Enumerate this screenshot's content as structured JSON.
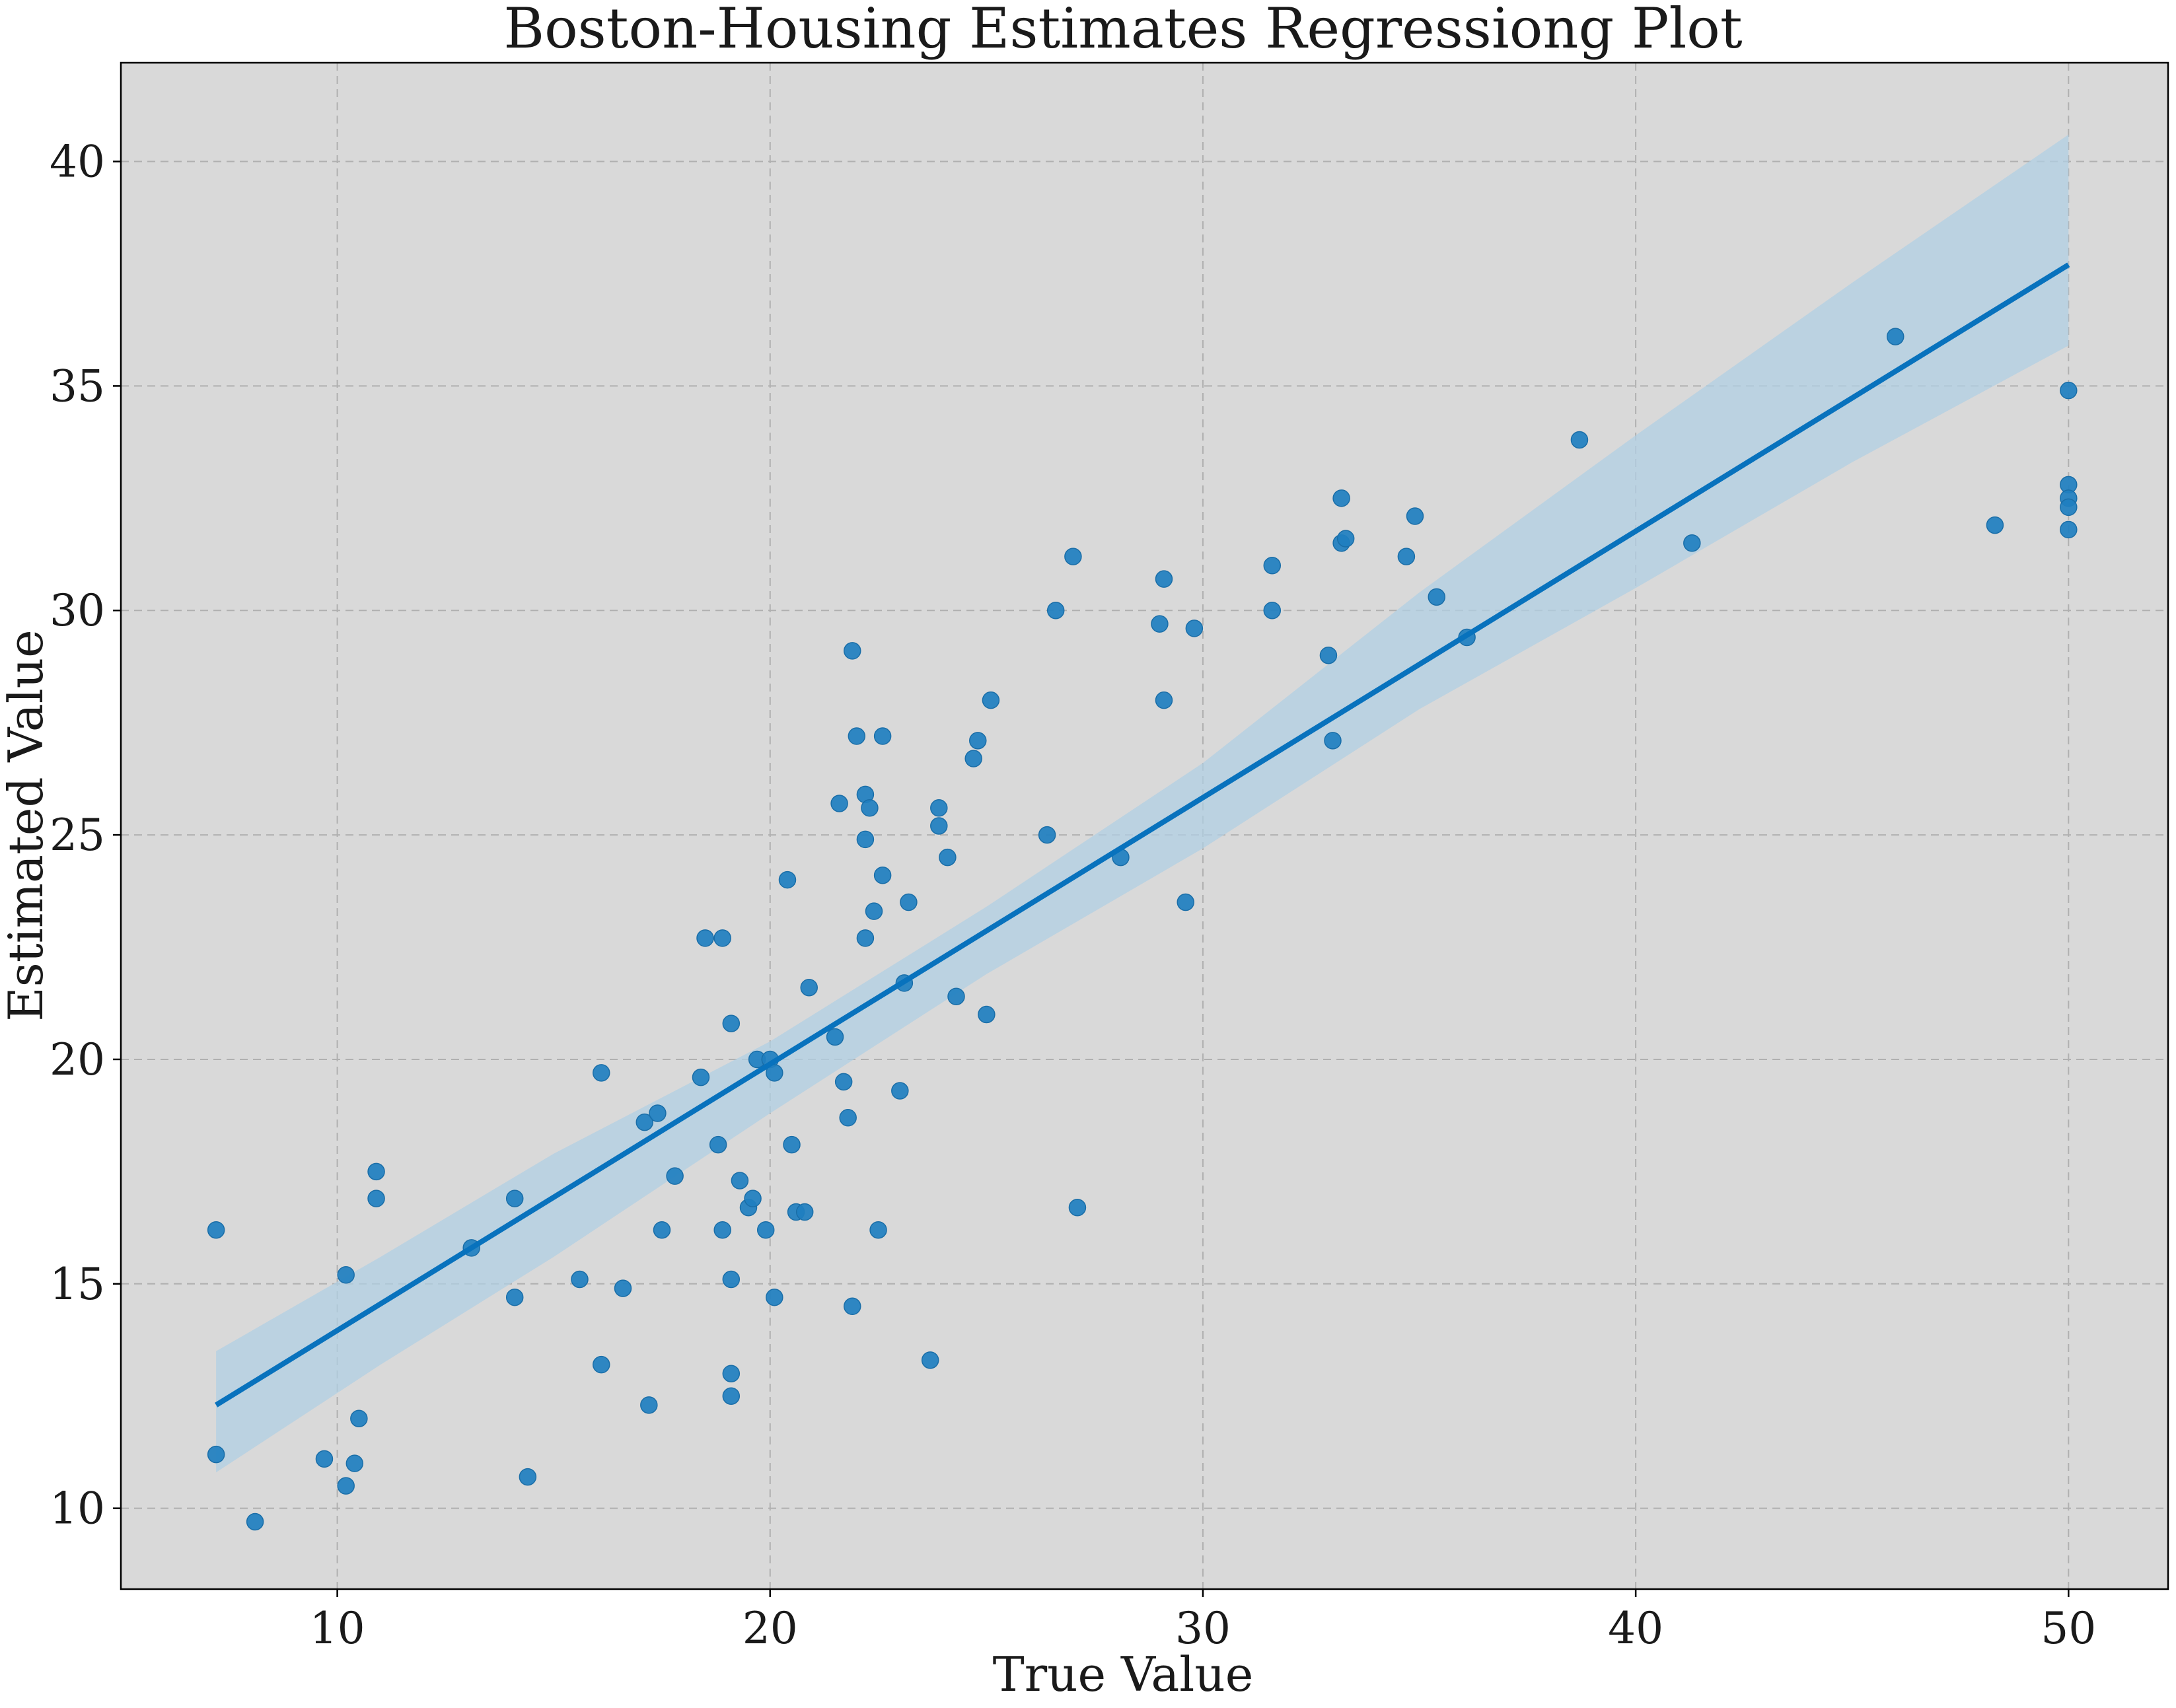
{
  "chart_data": {
    "type": "scatter",
    "title": "Boston-Housing Estimates Regressiong Plot",
    "xlabel": "True Value",
    "ylabel": "Estimated Value",
    "xlim": [
      5,
      52.3
    ],
    "ylim": [
      8.2,
      42.2
    ],
    "xticks": [
      10,
      20,
      30,
      40,
      50
    ],
    "yticks": [
      10,
      15,
      20,
      25,
      30,
      35,
      40
    ],
    "grid": true,
    "grid_style": "dashed",
    "background_color": "#d9d9d9",
    "point_color": "#1f7fc0",
    "line_color": "#0872bd",
    "band_color": "#b0cfe3",
    "regression": {
      "x": [
        7.2,
        50.0
      ],
      "y": [
        12.3,
        37.7
      ]
    },
    "confidence_band": {
      "x": [
        7.2,
        11,
        15,
        20,
        25,
        30,
        35,
        40,
        45,
        50
      ],
      "upper": [
        13.5,
        15.6,
        17.9,
        20.4,
        23.4,
        26.6,
        30.4,
        33.9,
        37.3,
        40.6
      ],
      "lower": [
        10.8,
        13.2,
        15.6,
        18.8,
        21.9,
        24.7,
        27.8,
        30.5,
        33.3,
        35.9
      ]
    },
    "points": [
      [
        7.2,
        16.2
      ],
      [
        7.2,
        11.2
      ],
      [
        8.1,
        9.7
      ],
      [
        9.7,
        11.1
      ],
      [
        10.2,
        15.2
      ],
      [
        10.2,
        10.5
      ],
      [
        10.4,
        11.0
      ],
      [
        10.5,
        12.0
      ],
      [
        10.9,
        17.5
      ],
      [
        10.9,
        16.9
      ],
      [
        13.1,
        15.8
      ],
      [
        14.1,
        16.9
      ],
      [
        14.1,
        14.7
      ],
      [
        14.4,
        10.7
      ],
      [
        15.6,
        15.1
      ],
      [
        16.1,
        19.7
      ],
      [
        16.1,
        13.2
      ],
      [
        16.6,
        14.9
      ],
      [
        17.1,
        18.6
      ],
      [
        17.2,
        12.3
      ],
      [
        17.4,
        18.8
      ],
      [
        17.5,
        16.2
      ],
      [
        17.8,
        17.4
      ],
      [
        18.4,
        19.6
      ],
      [
        18.5,
        22.7
      ],
      [
        18.8,
        18.1
      ],
      [
        18.9,
        22.7
      ],
      [
        18.9,
        16.2
      ],
      [
        19.1,
        20.8
      ],
      [
        19.1,
        15.1
      ],
      [
        19.1,
        13.0
      ],
      [
        19.1,
        12.5
      ],
      [
        19.3,
        17.3
      ],
      [
        19.5,
        16.7
      ],
      [
        19.6,
        16.9
      ],
      [
        19.7,
        20.0
      ],
      [
        19.9,
        16.2
      ],
      [
        20.0,
        20.0
      ],
      [
        20.1,
        19.7
      ],
      [
        20.1,
        14.7
      ],
      [
        20.4,
        24.0
      ],
      [
        20.5,
        18.1
      ],
      [
        20.6,
        16.6
      ],
      [
        20.8,
        16.6
      ],
      [
        20.9,
        21.6
      ],
      [
        21.5,
        20.5
      ],
      [
        21.6,
        25.7
      ],
      [
        21.7,
        19.5
      ],
      [
        21.8,
        18.7
      ],
      [
        21.9,
        29.1
      ],
      [
        21.9,
        14.5
      ],
      [
        22.0,
        27.2
      ],
      [
        22.2,
        25.9
      ],
      [
        22.2,
        24.9
      ],
      [
        22.2,
        22.7
      ],
      [
        22.3,
        25.6
      ],
      [
        22.4,
        23.3
      ],
      [
        22.5,
        16.2
      ],
      [
        22.6,
        27.2
      ],
      [
        22.6,
        24.1
      ],
      [
        23.0,
        19.3
      ],
      [
        23.1,
        21.7
      ],
      [
        23.2,
        23.5
      ],
      [
        23.7,
        13.3
      ],
      [
        23.9,
        25.6
      ],
      [
        23.9,
        25.2
      ],
      [
        24.1,
        24.5
      ],
      [
        24.3,
        21.4
      ],
      [
        24.7,
        26.7
      ],
      [
        24.8,
        27.1
      ],
      [
        25.0,
        21.0
      ],
      [
        25.1,
        28.0
      ],
      [
        26.4,
        25.0
      ],
      [
        26.6,
        30.0
      ],
      [
        27.0,
        31.2
      ],
      [
        27.1,
        16.7
      ],
      [
        28.1,
        24.5
      ],
      [
        29.0,
        29.7
      ],
      [
        29.1,
        30.7
      ],
      [
        29.1,
        28.0
      ],
      [
        29.6,
        23.5
      ],
      [
        29.8,
        29.6
      ],
      [
        31.6,
        31.0
      ],
      [
        31.6,
        30.0
      ],
      [
        32.9,
        29.0
      ],
      [
        33.0,
        27.1
      ],
      [
        33.2,
        32.5
      ],
      [
        33.2,
        31.5
      ],
      [
        33.3,
        31.6
      ],
      [
        34.7,
        31.2
      ],
      [
        34.9,
        32.1
      ],
      [
        35.4,
        30.3
      ],
      [
        36.1,
        29.4
      ],
      [
        38.7,
        33.8
      ],
      [
        41.3,
        31.5
      ],
      [
        46.0,
        36.1
      ],
      [
        48.3,
        31.9
      ],
      [
        50.0,
        34.9
      ],
      [
        50.0,
        32.8
      ],
      [
        50.0,
        32.5
      ],
      [
        50.0,
        32.3
      ],
      [
        50.0,
        31.8
      ]
    ]
  }
}
